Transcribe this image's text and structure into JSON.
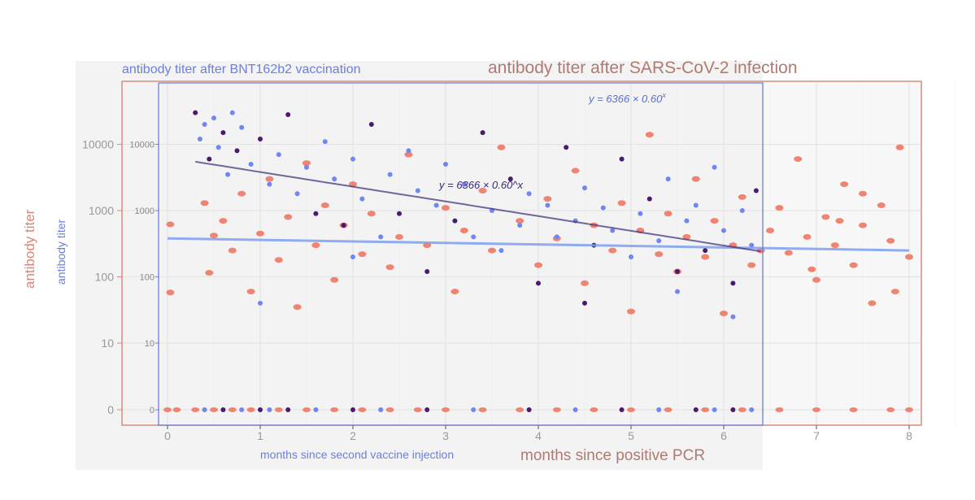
{
  "chart_data": [
    {
      "type": "scatter",
      "title": "antibody titer after SARS-CoV-2 infection",
      "xlabel": "months since positive PCR",
      "ylabel": "antibody titer",
      "xlim": [
        0,
        8
      ],
      "xticks": [
        "0",
        "1",
        "2",
        "3",
        "4",
        "5",
        "6",
        "7",
        "8"
      ],
      "yscale": "log with zero row",
      "yticks": [
        "0",
        "10",
        "100",
        "1000",
        "10000"
      ],
      "color": "#ef8472",
      "fit": {
        "type": "line",
        "x": [
          0,
          8
        ],
        "y": [
          380,
          250
        ]
      },
      "points": [
        [
          0.03,
          620
        ],
        [
          0.03,
          58
        ],
        [
          0.4,
          1300
        ],
        [
          0.45,
          115
        ],
        [
          0.5,
          420
        ],
        [
          0.6,
          700
        ],
        [
          0.7,
          250
        ],
        [
          0.8,
          1800
        ],
        [
          0.9,
          60
        ],
        [
          1.0,
          450
        ],
        [
          1.1,
          3000
        ],
        [
          1.2,
          180
        ],
        [
          1.3,
          800
        ],
        [
          1.4,
          35
        ],
        [
          1.5,
          5200
        ],
        [
          1.6,
          300
        ],
        [
          1.7,
          1200
        ],
        [
          1.8,
          90
        ],
        [
          1.9,
          600
        ],
        [
          2.0,
          2500
        ],
        [
          2.1,
          220
        ],
        [
          2.2,
          900
        ],
        [
          2.4,
          140
        ],
        [
          2.5,
          400
        ],
        [
          2.6,
          7000
        ],
        [
          2.8,
          300
        ],
        [
          3.0,
          1100
        ],
        [
          3.1,
          60
        ],
        [
          3.2,
          500
        ],
        [
          3.4,
          2000
        ],
        [
          3.5,
          250
        ],
        [
          3.6,
          9000
        ],
        [
          3.8,
          700
        ],
        [
          4.0,
          150
        ],
        [
          4.1,
          1500
        ],
        [
          4.2,
          380
        ],
        [
          4.4,
          4000
        ],
        [
          4.5,
          80
        ],
        [
          4.6,
          600
        ],
        [
          4.8,
          250
        ],
        [
          4.9,
          1300
        ],
        [
          5.0,
          30
        ],
        [
          5.1,
          500
        ],
        [
          5.2,
          14000
        ],
        [
          5.3,
          220
        ],
        [
          5.4,
          900
        ],
        [
          5.5,
          120
        ],
        [
          5.6,
          400
        ],
        [
          5.7,
          3000
        ],
        [
          5.8,
          200
        ],
        [
          5.9,
          700
        ],
        [
          6.0,
          28
        ],
        [
          6.1,
          300
        ],
        [
          6.2,
          1600
        ],
        [
          6.3,
          150
        ],
        [
          6.5,
          500
        ],
        [
          6.6,
          1100
        ],
        [
          6.7,
          230
        ],
        [
          6.8,
          6000
        ],
        [
          6.9,
          400
        ],
        [
          7.0,
          90
        ],
        [
          7.1,
          800
        ],
        [
          7.2,
          300
        ],
        [
          7.3,
          2500
        ],
        [
          7.4,
          150
        ],
        [
          7.5,
          600
        ],
        [
          7.6,
          40
        ],
        [
          7.7,
          1200
        ],
        [
          7.8,
          350
        ],
        [
          7.9,
          9000
        ],
        [
          8.0,
          200
        ],
        [
          7.5,
          1800
        ],
        [
          6.4,
          250
        ],
        [
          6.95,
          130
        ],
        [
          7.25,
          700
        ],
        [
          7.85,
          60
        ]
      ],
      "zero_points": [
        0.0,
        0.1,
        0.3,
        0.5,
        0.7,
        0.9,
        1.2,
        1.5,
        1.8,
        2.1,
        2.4,
        2.7,
        3.0,
        3.4,
        3.8,
        4.2,
        4.6,
        5.0,
        5.4,
        5.8,
        6.2,
        6.6,
        7.0,
        7.4,
        7.8,
        8.0
      ]
    },
    {
      "type": "scatter",
      "title": "antibody titer after BNT162b2 vaccination",
      "xlabel": "months since second vaccine injection",
      "ylabel": "antibody titer",
      "xlim": [
        0,
        6.4
      ],
      "yticks": [
        "0",
        "10",
        "100",
        "1000",
        "10000"
      ],
      "color": "#6f86f3",
      "overlap_color": "#4b1a6e",
      "fit": {
        "type": "exponential",
        "equation": "y = 6366 × 0.60^x",
        "a": 6366,
        "b": 0.6
      },
      "points": [
        [
          0.3,
          30000
        ],
        [
          0.35,
          12000
        ],
        [
          0.4,
          20000
        ],
        [
          0.45,
          6000
        ],
        [
          0.5,
          25000
        ],
        [
          0.55,
          9000
        ],
        [
          0.6,
          15000
        ],
        [
          0.65,
          3500
        ],
        [
          0.7,
          30000
        ],
        [
          0.75,
          8000
        ],
        [
          0.8,
          18000
        ],
        [
          0.9,
          5000
        ],
        [
          1.0,
          12000
        ],
        [
          1.1,
          2500
        ],
        [
          1.2,
          7000
        ],
        [
          1.3,
          28000
        ],
        [
          1.4,
          1800
        ],
        [
          1.5,
          4500
        ],
        [
          1.6,
          900
        ],
        [
          1.7,
          11000
        ],
        [
          1.8,
          3000
        ],
        [
          1.9,
          600
        ],
        [
          2.0,
          6000
        ],
        [
          2.1,
          1500
        ],
        [
          2.2,
          20000
        ],
        [
          2.3,
          400
        ],
        [
          2.4,
          3500
        ],
        [
          2.5,
          900
        ],
        [
          2.6,
          8000
        ],
        [
          2.7,
          2000
        ],
        [
          2.8,
          120
        ],
        [
          2.9,
          1200
        ],
        [
          3.0,
          5000
        ],
        [
          3.1,
          700
        ],
        [
          3.2,
          2500
        ],
        [
          3.3,
          400
        ],
        [
          3.4,
          15000
        ],
        [
          3.5,
          1000
        ],
        [
          3.6,
          250
        ],
        [
          3.7,
          3000
        ],
        [
          3.8,
          600
        ],
        [
          3.9,
          1800
        ],
        [
          4.0,
          80
        ],
        [
          4.1,
          1200
        ],
        [
          4.2,
          400
        ],
        [
          4.3,
          9000
        ],
        [
          4.4,
          700
        ],
        [
          4.5,
          2200
        ],
        [
          4.6,
          300
        ],
        [
          4.7,
          1100
        ],
        [
          4.8,
          500
        ],
        [
          4.9,
          6000
        ],
        [
          5.0,
          200
        ],
        [
          5.1,
          900
        ],
        [
          5.2,
          1500
        ],
        [
          5.3,
          350
        ],
        [
          5.4,
          3000
        ],
        [
          5.5,
          120
        ],
        [
          5.6,
          700
        ],
        [
          5.7,
          1200
        ],
        [
          5.8,
          250
        ],
        [
          5.9,
          4500
        ],
        [
          6.0,
          500
        ],
        [
          6.1,
          80
        ],
        [
          6.2,
          1000
        ],
        [
          6.3,
          300
        ],
        [
          6.35,
          2000
        ],
        [
          1.0,
          40
        ],
        [
          2.0,
          200
        ],
        [
          4.5,
          40
        ],
        [
          5.5,
          60
        ],
        [
          6.1,
          25
        ]
      ],
      "zero_points": [
        0.4,
        0.6,
        0.8,
        1.0,
        1.1,
        1.3,
        1.6,
        2.0,
        2.3,
        2.8,
        3.3,
        3.9,
        4.4,
        4.9,
        5.3,
        5.7,
        5.9,
        6.1,
        6.3
      ]
    }
  ],
  "equation_label": "y = 6366 × 0.60",
  "equation_exp": "x"
}
